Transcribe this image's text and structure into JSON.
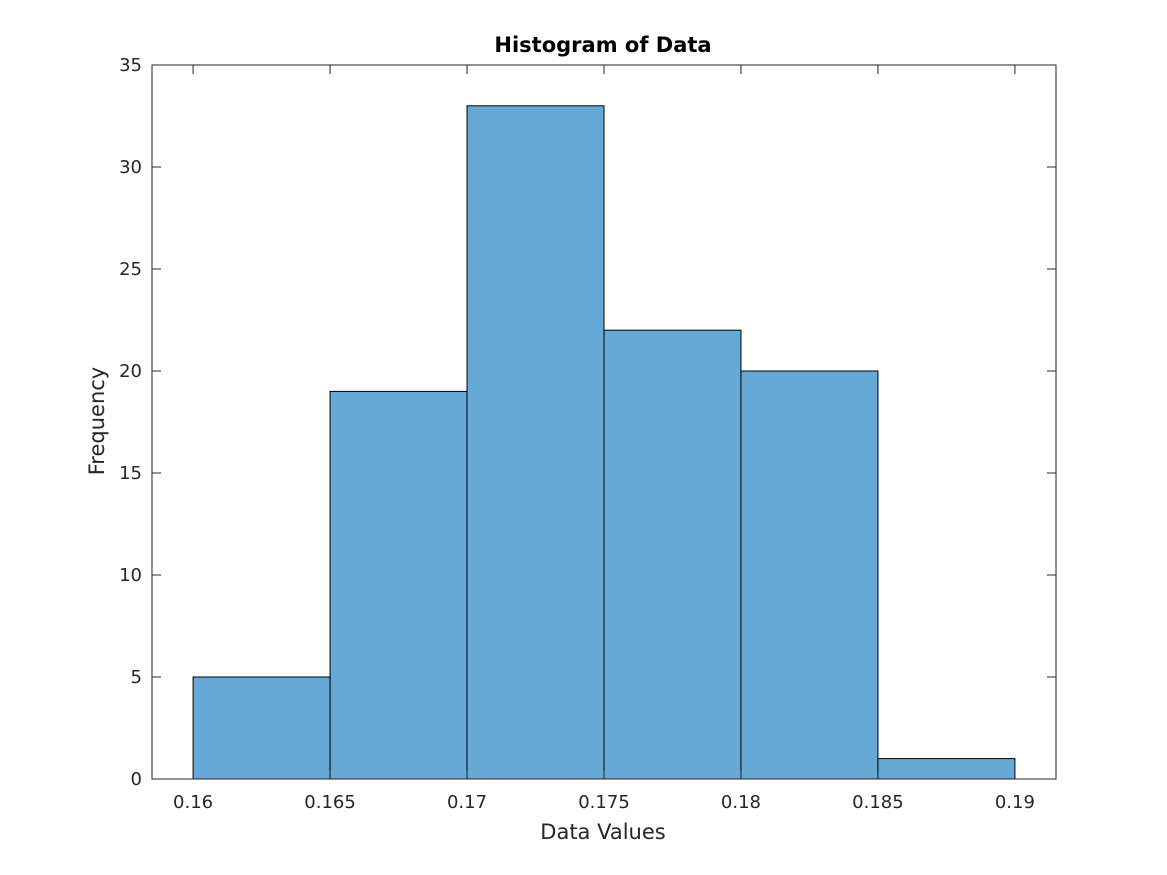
{
  "chart_data": {
    "type": "bar",
    "subtype": "histogram",
    "title": "Histogram of Data",
    "xlabel": "Data Values",
    "ylabel": "Frequency",
    "bin_edges": [
      0.16,
      0.165,
      0.17,
      0.175,
      0.18,
      0.185,
      0.19
    ],
    "values": [
      5,
      19,
      33,
      22,
      20,
      1
    ],
    "xlim": [
      0.1585,
      0.1915
    ],
    "ylim": [
      0,
      35
    ],
    "xticks": [
      "0.16",
      "0.165",
      "0.17",
      "0.175",
      "0.18",
      "0.185",
      "0.19"
    ],
    "yticks": [
      "0",
      "5",
      "10",
      "15",
      "20",
      "25",
      "30",
      "35"
    ],
    "grid": false,
    "bar_color": "#66a9d7",
    "edge_color": "#000000",
    "axis_color": "#262626"
  }
}
